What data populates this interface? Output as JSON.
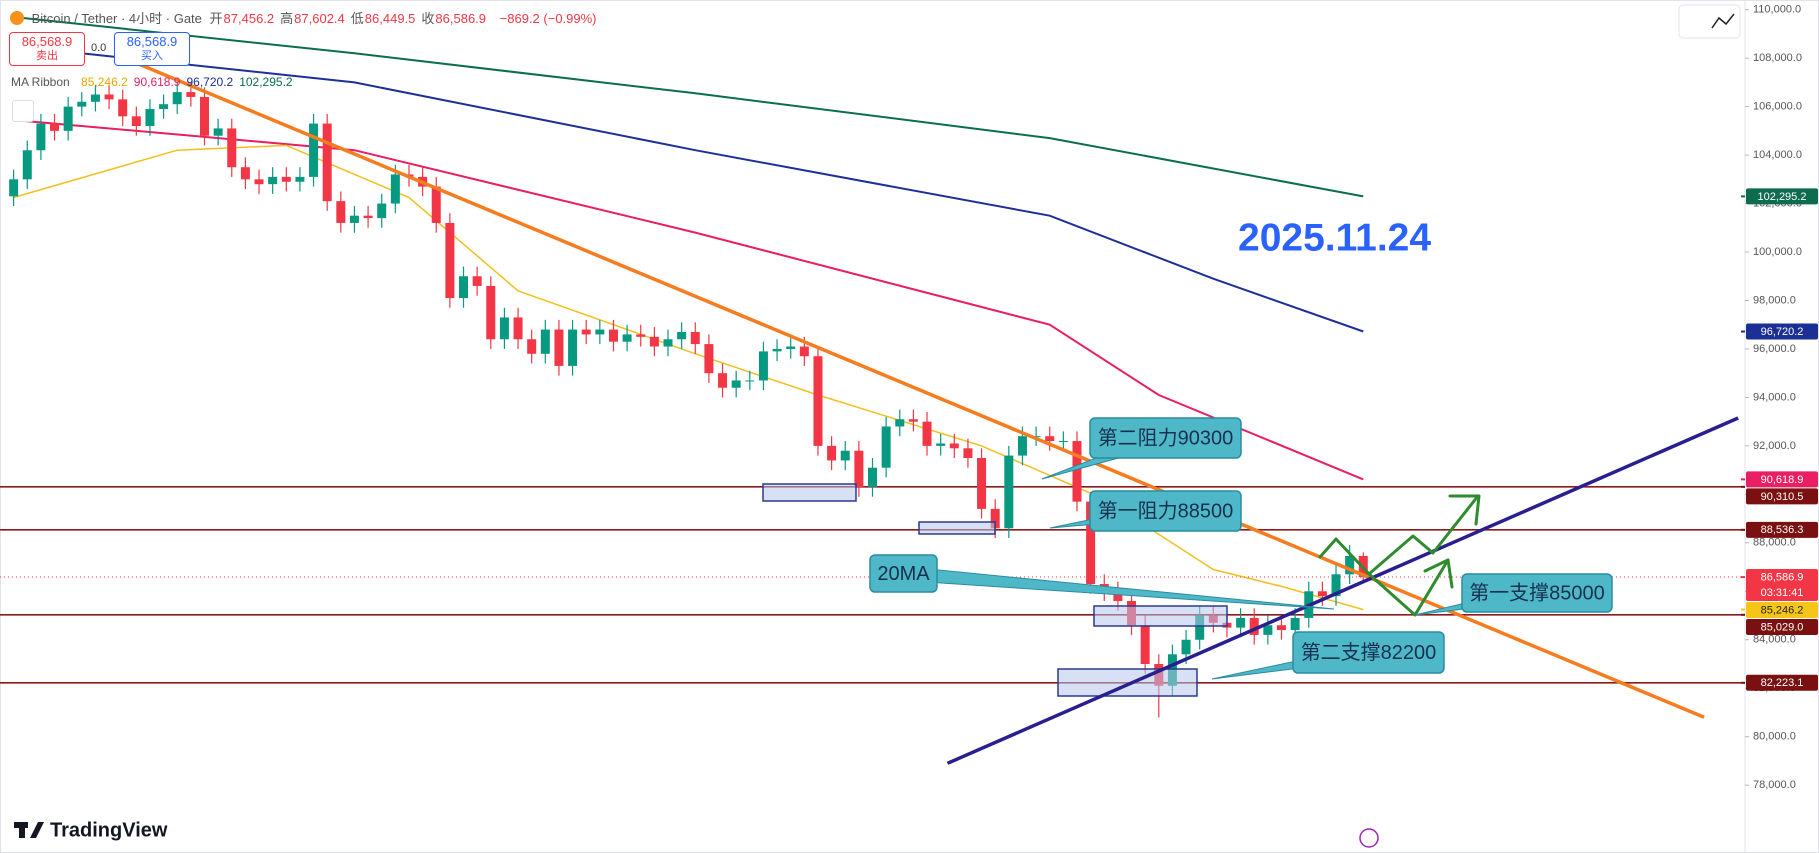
{
  "header": {
    "symbol": "Bitcoin / Tether · 4小时 · Gate",
    "fields": [
      {
        "label": "开",
        "value": "87,456.2"
      },
      {
        "label": "高",
        "value": "87,602.4"
      },
      {
        "label": "低",
        "value": "86,449.5"
      },
      {
        "label": "收",
        "value": "86,586.9"
      }
    ],
    "change": "−869.2 (−0.99%)"
  },
  "trade": {
    "sell_price": "86,568.9",
    "sell_label": "卖出",
    "spread": "0.0",
    "buy_price": "86,568.9",
    "buy_label": "买入"
  },
  "indicator": {
    "name": "MA Ribbon",
    "values": [
      {
        "text": "85,246.2",
        "color": "#e6a800"
      },
      {
        "text": "90,618.9",
        "color": "#e91e63"
      },
      {
        "text": "96,720.2",
        "color": "#1e2f97"
      },
      {
        "text": "102,295.2",
        "color": "#0b6e4f"
      }
    ]
  },
  "branding": {
    "logo": "TradingView"
  },
  "chart_data": {
    "type": "candlestick",
    "up_color": "#089981",
    "down_color": "#f23645",
    "open": [
      102300,
      103000,
      104200,
      105300,
      105000,
      106000,
      106200,
      106500,
      106300,
      105600,
      105200,
      105900,
      106100,
      106600,
      106400,
      104800,
      105100,
      103500,
      103000,
      102800,
      103100,
      102900,
      103100,
      105300,
      102100,
      101200,
      101500,
      101400,
      102000,
      103200,
      103100,
      102700,
      101200,
      98100,
      99000,
      98600,
      96400,
      97300,
      96400,
      95800,
      96800,
      95300,
      96800,
      96600,
      96800,
      96300,
      96600,
      96500,
      96100,
      96400,
      96700,
      96200,
      95000,
      94400,
      94700,
      94700,
      95900,
      96000,
      96100,
      95700,
      92000,
      91400,
      91800,
      90300,
      91100,
      92800,
      93100,
      93000,
      92000,
      92100,
      91900,
      91500,
      89400,
      88600,
      91600,
      92400,
      92400,
      92200,
      92200,
      89700,
      86300,
      86000,
      85600,
      84600,
      83000,
      82100,
      83400,
      84000,
      85000,
      84700,
      84500,
      84900,
      84200,
      84600,
      84400,
      84900,
      86000,
      85800,
      86700,
      87456.2
    ],
    "high": [
      103400,
      104600,
      105700,
      105700,
      106400,
      106600,
      106900,
      106900,
      106700,
      106000,
      106300,
      106500,
      107000,
      107000,
      106800,
      105500,
      105500,
      103900,
      103400,
      103500,
      103500,
      103500,
      105700,
      105700,
      102500,
      101900,
      101900,
      102400,
      103600,
      103600,
      103500,
      103100,
      101600,
      99400,
      99400,
      99000,
      97700,
      97700,
      96800,
      97200,
      97200,
      97200,
      97200,
      97200,
      97200,
      97000,
      97000,
      96900,
      96800,
      97100,
      97100,
      96600,
      95400,
      95100,
      95100,
      96300,
      96400,
      96500,
      96500,
      96100,
      92400,
      92200,
      92200,
      91500,
      93200,
      93500,
      93500,
      93400,
      92500,
      92500,
      92300,
      91900,
      89800,
      92000,
      92800,
      92800,
      92800,
      92600,
      92600,
      90100,
      86700,
      86400,
      86000,
      85000,
      83400,
      83800,
      84400,
      85400,
      85400,
      85100,
      85300,
      85300,
      85000,
      85000,
      85300,
      86400,
      86400,
      87100,
      87900,
      87602.4
    ],
    "low": [
      101900,
      102600,
      103800,
      104600,
      104600,
      105600,
      105800,
      105900,
      105200,
      104800,
      104800,
      105500,
      105700,
      106000,
      104400,
      104400,
      103100,
      102600,
      102400,
      102400,
      102500,
      102500,
      102700,
      101700,
      100800,
      100800,
      101000,
      101000,
      101600,
      102700,
      102300,
      100800,
      97700,
      97700,
      98200,
      96000,
      96000,
      96000,
      95400,
      95400,
      94900,
      94900,
      96200,
      96200,
      95900,
      95900,
      96100,
      95700,
      95700,
      96000,
      95800,
      94600,
      94000,
      94000,
      94300,
      94300,
      95500,
      95600,
      95300,
      91600,
      91000,
      91000,
      89900,
      89900,
      90700,
      92400,
      92600,
      91600,
      91600,
      91500,
      91100,
      89000,
      88200,
      88200,
      91200,
      92000,
      91800,
      91800,
      89300,
      85900,
      85600,
      85200,
      84200,
      82600,
      80800,
      81700,
      83000,
      83600,
      84300,
      84100,
      84100,
      83800,
      83800,
      84000,
      84000,
      84500,
      85400,
      85400,
      86300,
      86449.5
    ],
    "close": [
      103000,
      104200,
      105300,
      105000,
      106000,
      106200,
      106500,
      106300,
      105600,
      105200,
      105900,
      106100,
      106600,
      106400,
      104800,
      105100,
      103500,
      103000,
      102800,
      103100,
      102900,
      103100,
      105300,
      102100,
      101200,
      101500,
      101400,
      102000,
      103200,
      103100,
      102700,
      101200,
      98100,
      99000,
      98600,
      96400,
      97300,
      96400,
      95800,
      96800,
      95300,
      96800,
      96600,
      96800,
      96300,
      96600,
      96500,
      96100,
      96400,
      96700,
      96200,
      95000,
      94400,
      94700,
      94700,
      95900,
      96000,
      96100,
      95700,
      92000,
      91400,
      91800,
      90300,
      91100,
      92800,
      93100,
      93000,
      92000,
      92100,
      91900,
      91500,
      89400,
      88600,
      91600,
      92400,
      92400,
      92200,
      92200,
      89700,
      86300,
      86000,
      85600,
      84600,
      83000,
      82100,
      83400,
      84000,
      85000,
      84700,
      84500,
      84900,
      84200,
      84600,
      84400,
      84900,
      86000,
      85800,
      86700,
      87456.2,
      86586.9
    ],
    "xlim": [
      -1,
      127
    ],
    "ylim": [
      75200,
      110400
    ],
    "yticks": [
      {
        "value": 78000,
        "label": "78,000.0"
      },
      {
        "value": 80000,
        "label": "80,000.0"
      },
      {
        "value": 82000,
        "label": "82,000.0"
      },
      {
        "value": 84000,
        "label": "84,000.0"
      },
      {
        "value": 86000,
        "label": "86,000.0"
      },
      {
        "value": 88000,
        "label": "88,000.0"
      },
      {
        "value": 90000,
        "label": "90,000.0"
      },
      {
        "value": 92000,
        "label": "92,000.0"
      },
      {
        "value": 94000,
        "label": "94,000.0"
      },
      {
        "value": 96000,
        "label": "96,000.0"
      },
      {
        "value": 98000,
        "label": "98,000.0"
      },
      {
        "value": 100000,
        "label": "100,000.0"
      },
      {
        "value": 102000,
        "label": "102,000.0"
      },
      {
        "value": 104000,
        "label": "104,000.0"
      },
      {
        "value": 106000,
        "label": "106,000.0"
      },
      {
        "value": 108000,
        "label": "108,000.0"
      },
      {
        "value": 110000,
        "label": "110,000.0"
      }
    ],
    "moving_averages": [
      {
        "color": "#0b6e4f",
        "x": [
          0,
          25,
          50,
          76,
          99
        ],
        "values": [
          109700,
          108200,
          106550,
          104700,
          102295.2
        ]
      },
      {
        "color": "#1e2f97",
        "x": [
          0,
          25,
          50,
          76,
          88,
          99
        ],
        "values": [
          108500,
          107000,
          104200,
          101500,
          98900,
          96720.2
        ]
      },
      {
        "color": "#e91e63",
        "x": [
          0,
          25,
          50,
          76,
          84,
          99
        ],
        "values": [
          105450,
          104200,
          100800,
          97000,
          94100,
          90618.9
        ]
      },
      {
        "color": "#f2c01e",
        "x": [
          0,
          12,
          20,
          29,
          37,
          50,
          59,
          71,
          80,
          88,
          93,
          99
        ],
        "values": [
          102250,
          104200,
          104400,
          102250,
          98400,
          95800,
          94100,
          92000,
          89800,
          86900,
          86200,
          85246.2
        ]
      }
    ],
    "levels": [
      90310.5,
      88536.3,
      85029.0,
      82223.1
    ],
    "level_color": "#8b1a1a",
    "trendlines": [
      {
        "color": "#f57c1f",
        "x": [
          9,
          124
        ],
        "values": [
          107800,
          80800
        ]
      },
      {
        "color": "#2a1f8f",
        "x": [
          68.5,
          126.5
        ],
        "values": [
          78900,
          93150
        ]
      }
    ],
    "price_tags": [
      {
        "value": 102295.2,
        "label": "102,295.2",
        "color": "#0d6b4e"
      },
      {
        "value": 96720.2,
        "label": "96,720.2",
        "color": "#1b2f94"
      },
      {
        "value": 90618.9,
        "label": "90,618.9",
        "color": "#e91e63"
      },
      {
        "value": 90310.5,
        "label": "90,310.5",
        "color": "#7a1010"
      },
      {
        "value": 88536.3,
        "label": "88,536.3",
        "color": "#7a1010"
      },
      {
        "value": 86586.9,
        "label": "86,586.9",
        "color": "#f23645",
        "countdown": "03:31:41"
      },
      {
        "value": 85246.2,
        "label": "85,246.2",
        "color": "#f5c518"
      },
      {
        "value": 85029.0,
        "label": "85,029.0",
        "color": "#7a1010"
      },
      {
        "value": 82223.1,
        "label": "82,223.1",
        "color": "#7a1010"
      }
    ],
    "annotations": [
      "2025.11.24",
      "第二阻力90300",
      "第一阻力88500",
      "20MA",
      "第一支撑85000",
      "第二支撑82200"
    ]
  }
}
